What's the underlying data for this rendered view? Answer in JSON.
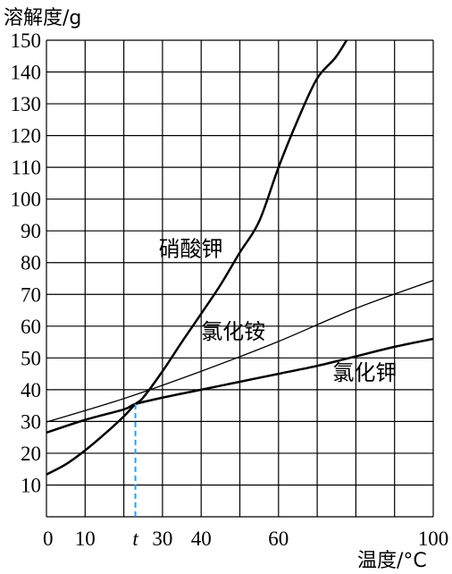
{
  "chart_data": {
    "type": "line",
    "ylabel": "溶解度/g",
    "xlabel": "温度/°C",
    "xlim": [
      0,
      100
    ],
    "ylim": [
      0,
      150
    ],
    "grid": true,
    "x_ticks": [
      {
        "value": 0,
        "label": "0"
      },
      {
        "value": 10,
        "label": "10"
      },
      {
        "value": 23,
        "label": "t",
        "italic": true
      },
      {
        "value": 30,
        "label": "30"
      },
      {
        "value": 40,
        "label": "40"
      },
      {
        "value": 60,
        "label": "60"
      },
      {
        "value": 100,
        "label": "100"
      }
    ],
    "y_ticks": [
      10,
      20,
      30,
      40,
      50,
      60,
      70,
      80,
      90,
      100,
      110,
      120,
      130,
      140,
      150
    ],
    "series": [
      {
        "name": "硝酸钾",
        "stroke_width": 2.5,
        "x": [
          0,
          5,
          10,
          15,
          20,
          23,
          25,
          30,
          35,
          40,
          45,
          50,
          55,
          60,
          65,
          70,
          75,
          80
        ],
        "y": [
          13.3,
          16.5,
          20.9,
          26,
          31.6,
          35.5,
          37.5,
          45.8,
          55,
          63.9,
          73,
          83.2,
          93,
          110,
          125,
          138,
          145,
          155
        ]
      },
      {
        "name": "氯化铵",
        "stroke_width": 1.3,
        "x": [
          0,
          20,
          40,
          60,
          80,
          100
        ],
        "y": [
          29.8,
          37.2,
          45.8,
          55.2,
          65.6,
          74.4
        ]
      },
      {
        "name": "氯化钾",
        "stroke_width": 2.5,
        "x": [
          0,
          10,
          20,
          23,
          30,
          40,
          50,
          60,
          70,
          80,
          90,
          100
        ],
        "y": [
          26.5,
          30.5,
          33.8,
          35.5,
          37.5,
          40.0,
          42.5,
          45.0,
          47.5,
          50.5,
          53.5,
          56.0
        ]
      }
    ],
    "annotations": [
      {
        "text": "硝酸钾",
        "x": 29,
        "y": 82
      },
      {
        "text": "氯化铵",
        "x": 40,
        "y": 56
      },
      {
        "text": "氯化钾",
        "x": 74,
        "y": 43
      }
    ],
    "marker": {
      "x": 23,
      "y": 35.5,
      "color": "#2a9df4"
    }
  }
}
